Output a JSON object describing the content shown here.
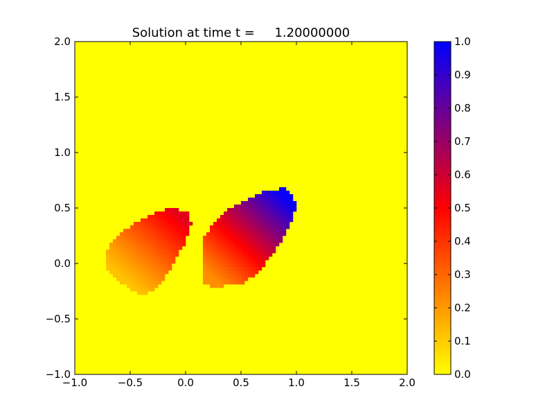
{
  "chart_data": {
    "type": "heatmap",
    "title": "Solution at time t =     1.20000000",
    "xlabel": "",
    "ylabel": "",
    "xlim": [
      -1.0,
      2.0
    ],
    "ylim": [
      -1.0,
      2.0
    ],
    "x_ticks": [
      "−1.0",
      "−0.5",
      "0.0",
      "0.5",
      "1.0",
      "1.5",
      "2.0"
    ],
    "x_tick_values": [
      -1.0,
      -0.5,
      0.0,
      0.5,
      1.0,
      1.5,
      2.0
    ],
    "y_ticks": [
      "−1.0",
      "−0.5",
      "0.0",
      "0.5",
      "1.0",
      "1.5",
      "2.0"
    ],
    "y_tick_values": [
      -1.0,
      -0.5,
      0.0,
      0.5,
      1.0,
      1.5,
      2.0
    ],
    "grid": false,
    "background_value": 0.0,
    "regions": [
      {
        "name": "",
        "boundary": [
          [
            -0.7,
            0.15
          ],
          [
            -0.55,
            0.3
          ],
          [
            -0.4,
            0.4
          ],
          [
            -0.25,
            0.47
          ],
          [
            -0.1,
            0.5
          ],
          [
            0.03,
            0.45
          ],
          [
            0.05,
            0.35
          ],
          [
            0.0,
            0.2
          ],
          [
            -0.08,
            0.05
          ],
          [
            -0.18,
            -0.12
          ],
          [
            -0.3,
            -0.25
          ],
          [
            -0.4,
            -0.29
          ],
          [
            -0.55,
            -0.2
          ],
          [
            -0.72,
            -0.05
          ]
        ],
        "low_point": [
          -0.55,
          -0.15
        ],
        "low_value": 0.12,
        "high_point": [
          -0.05,
          0.42
        ],
        "high_value": 0.55
      },
      {
        "name": "",
        "boundary": [
          [
            0.17,
            0.25
          ],
          [
            0.3,
            0.42
          ],
          [
            0.45,
            0.53
          ],
          [
            0.6,
            0.6
          ],
          [
            0.75,
            0.66
          ],
          [
            0.9,
            0.68
          ],
          [
            0.98,
            0.62
          ],
          [
            0.99,
            0.5
          ],
          [
            0.94,
            0.35
          ],
          [
            0.86,
            0.2
          ],
          [
            0.76,
            0.05
          ],
          [
            0.65,
            -0.08
          ],
          [
            0.52,
            -0.18
          ],
          [
            0.3,
            -0.21
          ],
          [
            0.16,
            -0.2
          ]
        ],
        "low_point": [
          0.25,
          -0.15
        ],
        "low_value": 0.22,
        "high_point": [
          0.9,
          0.58
        ],
        "high_value": 0.98
      }
    ],
    "colorbar": {
      "range": [
        0.0,
        1.0
      ],
      "ticks": [
        "0.0",
        "0.1",
        "0.2",
        "0.3",
        "0.4",
        "0.5",
        "0.6",
        "0.7",
        "0.8",
        "0.9",
        "1.0"
      ],
      "tick_values": [
        0.0,
        0.1,
        0.2,
        0.3,
        0.4,
        0.5,
        0.6,
        0.7,
        0.8,
        0.9,
        1.0
      ],
      "colors": [
        "#ffff00",
        "#ff0000",
        "#0000ff"
      ]
    }
  }
}
